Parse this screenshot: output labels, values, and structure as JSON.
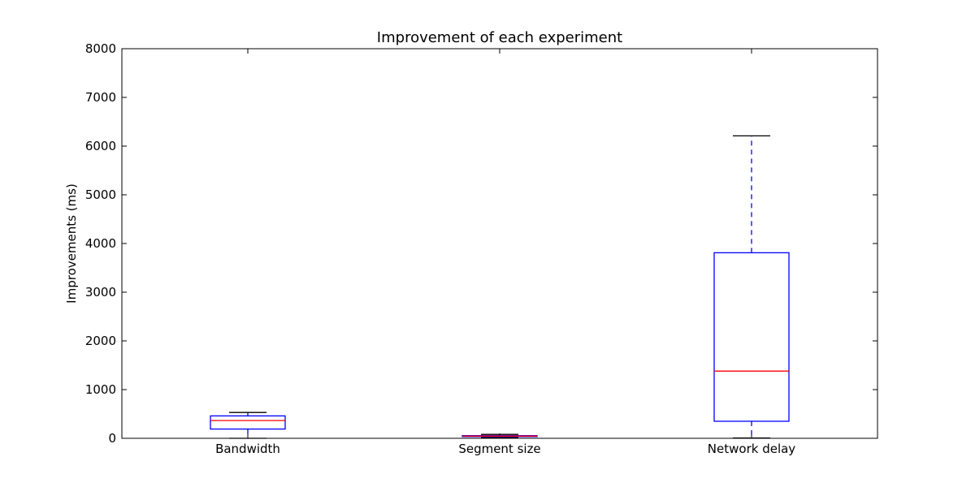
{
  "chart_data": {
    "type": "box",
    "title": "Improvement of each experiment",
    "xlabel": "",
    "ylabel": "Improvements (ms)",
    "ylim": [
      0,
      8000
    ],
    "yticks": [
      0,
      1000,
      2000,
      3000,
      4000,
      5000,
      6000,
      7000,
      8000
    ],
    "grid": false,
    "categories": [
      "Bandwidth",
      "Segment size",
      "Network delay"
    ],
    "boxes": [
      {
        "category": "Bandwidth",
        "whisker_low": 0,
        "q1": 190,
        "median": 365,
        "q3": 460,
        "whisker_high": 530
      },
      {
        "category": "Segment size",
        "whisker_low": 20,
        "q1": 35,
        "median": 45,
        "q3": 55,
        "whisker_high": 80
      },
      {
        "category": "Network delay",
        "whisker_low": 5,
        "q1": 350,
        "median": 1380,
        "q3": 3810,
        "whisker_high": 6210
      }
    ],
    "colors": {
      "box": "#0000ff",
      "median": "#ff0000",
      "whisker": "#0000ff",
      "cap": "#000000",
      "axes": "#000000"
    }
  }
}
